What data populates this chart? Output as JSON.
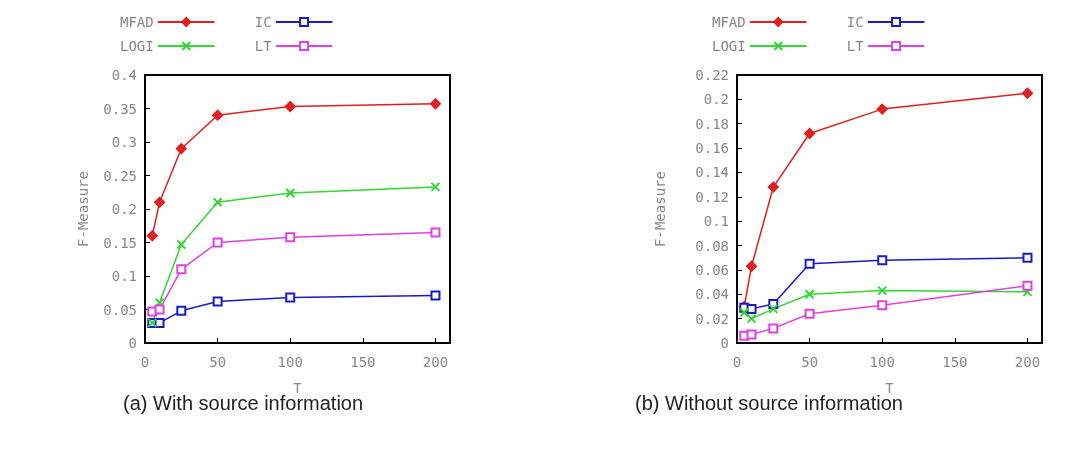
{
  "chart_data": [
    {
      "type": "line",
      "title": "(a) With source information",
      "xlabel": "T",
      "ylabel": "F-Measure",
      "legend": "top",
      "grid": false,
      "xlim": [
        0,
        210
      ],
      "xticks": [
        0,
        50,
        100,
        150,
        200
      ],
      "ylim": [
        0,
        0.4
      ],
      "yticks": [
        0,
        0.05,
        0.1,
        0.15,
        0.2,
        0.25,
        0.3,
        0.35,
        0.4
      ],
      "x": [
        5,
        10,
        25,
        50,
        100,
        200
      ],
      "series": [
        {
          "name": "MFAD",
          "color": "#e02020",
          "marker": "diamond",
          "values": [
            0.16,
            0.21,
            0.29,
            0.34,
            0.353,
            0.357
          ]
        },
        {
          "name": "IC",
          "color": "#1a1acc",
          "marker": "square",
          "values": [
            0.03,
            0.03,
            0.048,
            0.062,
            0.068,
            0.071
          ]
        },
        {
          "name": "LOGI",
          "color": "#33d633",
          "marker": "cross",
          "values": [
            0.03,
            0.06,
            0.147,
            0.21,
            0.224,
            0.233
          ]
        },
        {
          "name": "LT",
          "color": "#e040e0",
          "marker": "square",
          "values": [
            0.047,
            0.05,
            0.11,
            0.15,
            0.158,
            0.165
          ]
        }
      ]
    },
    {
      "type": "line",
      "title": "(b) Without source information",
      "xlabel": "T",
      "ylabel": "F-Measure",
      "legend": "top",
      "grid": false,
      "xlim": [
        0,
        210
      ],
      "xticks": [
        0,
        50,
        100,
        150,
        200
      ],
      "ylim": [
        0,
        0.22
      ],
      "yticks": [
        0,
        0.02,
        0.04,
        0.06,
        0.08,
        0.1,
        0.12,
        0.14,
        0.16,
        0.18,
        0.2,
        0.22
      ],
      "x": [
        5,
        10,
        25,
        50,
        100,
        200
      ],
      "series": [
        {
          "name": "MFAD",
          "color": "#e02020",
          "marker": "diamond",
          "values": [
            0.03,
            0.063,
            0.128,
            0.172,
            0.192,
            0.205
          ]
        },
        {
          "name": "IC",
          "color": "#1a1acc",
          "marker": "square",
          "values": [
            0.029,
            0.028,
            0.032,
            0.065,
            0.068,
            0.07
          ]
        },
        {
          "name": "LOGI",
          "color": "#33d633",
          "marker": "cross",
          "values": [
            0.025,
            0.02,
            0.028,
            0.04,
            0.043,
            0.042
          ]
        },
        {
          "name": "LT",
          "color": "#e040e0",
          "marker": "square",
          "values": [
            0.006,
            0.007,
            0.012,
            0.024,
            0.031,
            0.047
          ]
        }
      ]
    }
  ]
}
